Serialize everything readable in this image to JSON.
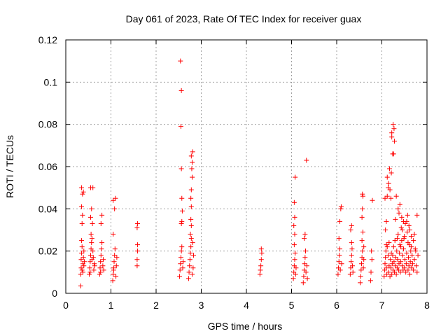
{
  "chart_data": {
    "type": "scatter",
    "title": "Day 061 of 2023, Rate Of TEC Index for receiver guax",
    "xlabel": "GPS time / hours",
    "ylabel": "ROTI / TECUs",
    "xlim": [
      0,
      8
    ],
    "ylim": [
      0,
      0.12
    ],
    "x_ticks": [
      "0",
      "1",
      "2",
      "3",
      "4",
      "5",
      "6",
      "7",
      "8"
    ],
    "y_ticks": [
      "0",
      "0.02",
      "0.04",
      "0.06",
      "0.08",
      "0.1",
      "0.12"
    ],
    "grid": true,
    "marker": "+",
    "colors": {
      "points": "#ff0000",
      "grid": "#a0a0a0",
      "axes": "#000000"
    },
    "series": [
      {
        "points": [
          [
            0.33,
            0.0035
          ],
          [
            0.33,
            0.009
          ],
          [
            0.34,
            0.012
          ],
          [
            0.34,
            0.016
          ],
          [
            0.35,
            0.019
          ],
          [
            0.35,
            0.025
          ],
          [
            0.36,
            0.033
          ],
          [
            0.37,
            0.037
          ],
          [
            0.35,
            0.041
          ],
          [
            0.37,
            0.047
          ],
          [
            0.35,
            0.05
          ],
          [
            0.39,
            0.048
          ],
          [
            0.36,
            0.011
          ],
          [
            0.38,
            0.014
          ],
          [
            0.39,
            0.017
          ],
          [
            0.4,
            0.013
          ],
          [
            0.4,
            0.02
          ],
          [
            0.38,
            0.01
          ],
          [
            0.36,
            0.022
          ],
          [
            0.41,
            0.015
          ],
          [
            0.52,
            0.009
          ],
          [
            0.53,
            0.012
          ],
          [
            0.54,
            0.015
          ],
          [
            0.55,
            0.018
          ],
          [
            0.56,
            0.021
          ],
          [
            0.57,
            0.024
          ],
          [
            0.58,
            0.026
          ],
          [
            0.59,
            0.033
          ],
          [
            0.55,
            0.036
          ],
          [
            0.57,
            0.04
          ],
          [
            0.55,
            0.05
          ],
          [
            0.6,
            0.05
          ],
          [
            0.62,
            0.011
          ],
          [
            0.63,
            0.014
          ],
          [
            0.61,
            0.017
          ],
          [
            0.64,
            0.013
          ],
          [
            0.54,
            0.01
          ],
          [
            0.58,
            0.016
          ],
          [
            0.6,
            0.02
          ],
          [
            0.56,
            0.028
          ],
          [
            0.75,
            0.009
          ],
          [
            0.76,
            0.012
          ],
          [
            0.77,
            0.015
          ],
          [
            0.78,
            0.018
          ],
          [
            0.79,
            0.021
          ],
          [
            0.8,
            0.024
          ],
          [
            0.78,
            0.033
          ],
          [
            0.8,
            0.037
          ],
          [
            0.82,
            0.013
          ],
          [
            0.83,
            0.016
          ],
          [
            0.84,
            0.011
          ],
          [
            0.77,
            0.01
          ],
          [
            1.04,
            0.006
          ],
          [
            1.05,
            0.009
          ],
          [
            1.06,
            0.012
          ],
          [
            1.07,
            0.015
          ],
          [
            1.08,
            0.018
          ],
          [
            1.09,
            0.021
          ],
          [
            1.05,
            0.028
          ],
          [
            1.08,
            0.04
          ],
          [
            1.05,
            0.044
          ],
          [
            1.1,
            0.045
          ],
          [
            1.11,
            0.008
          ],
          [
            1.12,
            0.013
          ],
          [
            1.13,
            0.017
          ],
          [
            1.06,
            0.011
          ],
          [
            1.58,
            0.013
          ],
          [
            1.58,
            0.016
          ],
          [
            1.59,
            0.02
          ],
          [
            1.59,
            0.023
          ],
          [
            1.58,
            0.031
          ],
          [
            1.59,
            0.033
          ],
          [
            2.52,
            0.008
          ],
          [
            2.53,
            0.011
          ],
          [
            2.54,
            0.014
          ],
          [
            2.55,
            0.017
          ],
          [
            2.56,
            0.02
          ],
          [
            2.57,
            0.022
          ],
          [
            2.56,
            0.033
          ],
          [
            2.57,
            0.034
          ],
          [
            2.58,
            0.039
          ],
          [
            2.57,
            0.045
          ],
          [
            2.56,
            0.059
          ],
          [
            2.55,
            0.079
          ],
          [
            2.56,
            0.096
          ],
          [
            2.54,
            0.11
          ],
          [
            2.59,
            0.012
          ],
          [
            2.6,
            0.015
          ],
          [
            2.72,
            0.007
          ],
          [
            2.73,
            0.01
          ],
          [
            2.74,
            0.013
          ],
          [
            2.75,
            0.016
          ],
          [
            2.76,
            0.019
          ],
          [
            2.77,
            0.022
          ],
          [
            2.78,
            0.026
          ],
          [
            2.76,
            0.028
          ],
          [
            2.78,
            0.032
          ],
          [
            2.77,
            0.035
          ],
          [
            2.78,
            0.041
          ],
          [
            2.77,
            0.045
          ],
          [
            2.78,
            0.049
          ],
          [
            2.8,
            0.055
          ],
          [
            2.79,
            0.059
          ],
          [
            2.8,
            0.062
          ],
          [
            2.78,
            0.065
          ],
          [
            2.81,
            0.067
          ],
          [
            2.82,
            0.012
          ],
          [
            2.83,
            0.018
          ],
          [
            2.8,
            0.009
          ],
          [
            2.81,
            0.024
          ],
          [
            4.3,
            0.009
          ],
          [
            4.31,
            0.011
          ],
          [
            4.32,
            0.013
          ],
          [
            4.33,
            0.016
          ],
          [
            4.34,
            0.019
          ],
          [
            4.33,
            0.021
          ],
          [
            5.04,
            0.007
          ],
          [
            5.05,
            0.01
          ],
          [
            5.06,
            0.013
          ],
          [
            5.07,
            0.016
          ],
          [
            5.08,
            0.019
          ],
          [
            5.06,
            0.023
          ],
          [
            5.07,
            0.028
          ],
          [
            5.05,
            0.032
          ],
          [
            5.07,
            0.036
          ],
          [
            5.06,
            0.043
          ],
          [
            5.08,
            0.055
          ],
          [
            5.09,
            0.009
          ],
          [
            5.1,
            0.012
          ],
          [
            5.26,
            0.005
          ],
          [
            5.27,
            0.008
          ],
          [
            5.28,
            0.011
          ],
          [
            5.29,
            0.014
          ],
          [
            5.3,
            0.017
          ],
          [
            5.31,
            0.02
          ],
          [
            5.28,
            0.026
          ],
          [
            5.3,
            0.028
          ],
          [
            5.33,
            0.063
          ],
          [
            5.32,
            0.01
          ],
          [
            5.34,
            0.013
          ],
          [
            5.35,
            0.007
          ],
          [
            6.03,
            0.009
          ],
          [
            6.04,
            0.012
          ],
          [
            6.05,
            0.015
          ],
          [
            6.06,
            0.018
          ],
          [
            6.07,
            0.021
          ],
          [
            6.05,
            0.026
          ],
          [
            6.07,
            0.034
          ],
          [
            6.09,
            0.04
          ],
          [
            6.1,
            0.041
          ],
          [
            6.08,
            0.011
          ],
          [
            6.11,
            0.014
          ],
          [
            6.3,
            0.009
          ],
          [
            6.31,
            0.012
          ],
          [
            6.32,
            0.015
          ],
          [
            6.33,
            0.018
          ],
          [
            6.34,
            0.021
          ],
          [
            6.33,
            0.024
          ],
          [
            6.31,
            0.03
          ],
          [
            6.33,
            0.032
          ],
          [
            6.35,
            0.013
          ],
          [
            6.36,
            0.01
          ],
          [
            6.52,
            0.005
          ],
          [
            6.53,
            0.008
          ],
          [
            6.54,
            0.011
          ],
          [
            6.55,
            0.014
          ],
          [
            6.56,
            0.017
          ],
          [
            6.57,
            0.02
          ],
          [
            6.56,
            0.025
          ],
          [
            6.58,
            0.029
          ],
          [
            6.56,
            0.036
          ],
          [
            6.57,
            0.04
          ],
          [
            6.58,
            0.046
          ],
          [
            6.57,
            0.047
          ],
          [
            6.59,
            0.012
          ],
          [
            6.6,
            0.016
          ],
          [
            6.6,
            0.022
          ],
          [
            6.75,
            0.006
          ],
          [
            6.76,
            0.01
          ],
          [
            6.78,
            0.016
          ],
          [
            6.77,
            0.02
          ],
          [
            6.79,
            0.044
          ],
          [
            7.05,
            0.008
          ],
          [
            7.06,
            0.011
          ],
          [
            7.07,
            0.014
          ],
          [
            7.08,
            0.017
          ],
          [
            7.09,
            0.02
          ],
          [
            7.1,
            0.023
          ],
          [
            7.08,
            0.03
          ],
          [
            7.1,
            0.034
          ],
          [
            7.07,
            0.045
          ],
          [
            7.12,
            0.046
          ],
          [
            7.14,
            0.05
          ],
          [
            7.15,
            0.052
          ],
          [
            7.12,
            0.055
          ],
          [
            7.18,
            0.049
          ],
          [
            7.2,
            0.045
          ],
          [
            7.17,
            0.059
          ],
          [
            7.21,
            0.057
          ],
          [
            7.24,
            0.066
          ],
          [
            7.22,
            0.076
          ],
          [
            7.25,
            0.08
          ],
          [
            7.22,
            0.074
          ],
          [
            7.27,
            0.078
          ],
          [
            7.28,
            0.072
          ],
          [
            7.26,
            0.066
          ],
          [
            7.15,
            0.01
          ],
          [
            7.16,
            0.013
          ],
          [
            7.18,
            0.008
          ],
          [
            7.19,
            0.016
          ],
          [
            7.2,
            0.012
          ],
          [
            7.21,
            0.019
          ],
          [
            7.22,
            0.009
          ],
          [
            7.23,
            0.014
          ],
          [
            7.24,
            0.018
          ],
          [
            7.25,
            0.011
          ],
          [
            7.26,
            0.022
          ],
          [
            7.27,
            0.015
          ],
          [
            7.28,
            0.01
          ],
          [
            7.29,
            0.025
          ],
          [
            7.3,
            0.013
          ],
          [
            7.31,
            0.017
          ],
          [
            7.32,
            0.009
          ],
          [
            7.33,
            0.02
          ],
          [
            7.34,
            0.012
          ],
          [
            7.35,
            0.016
          ],
          [
            7.36,
            0.028
          ],
          [
            7.37,
            0.011
          ],
          [
            7.38,
            0.014
          ],
          [
            7.39,
            0.019
          ],
          [
            7.4,
            0.023
          ],
          [
            7.41,
            0.01
          ],
          [
            7.42,
            0.015
          ],
          [
            7.43,
            0.031
          ],
          [
            7.44,
            0.036
          ],
          [
            7.45,
            0.013
          ],
          [
            7.46,
            0.018
          ],
          [
            7.47,
            0.011
          ],
          [
            7.48,
            0.021
          ],
          [
            7.49,
            0.026
          ],
          [
            7.5,
            0.012
          ],
          [
            7.51,
            0.016
          ],
          [
            7.52,
            0.033
          ],
          [
            7.53,
            0.01
          ],
          [
            7.54,
            0.014
          ],
          [
            7.55,
            0.019
          ],
          [
            7.56,
            0.029
          ],
          [
            7.57,
            0.037
          ],
          [
            7.58,
            0.011
          ],
          [
            7.59,
            0.017
          ],
          [
            7.6,
            0.013
          ],
          [
            7.61,
            0.023
          ],
          [
            7.62,
            0.009
          ],
          [
            7.63,
            0.015
          ],
          [
            7.64,
            0.02
          ],
          [
            7.65,
            0.027
          ],
          [
            7.66,
            0.012
          ],
          [
            7.67,
            0.018
          ],
          [
            7.68,
            0.014
          ],
          [
            7.7,
            0.011
          ],
          [
            7.72,
            0.016
          ],
          [
            7.74,
            0.021
          ],
          [
            7.76,
            0.013
          ],
          [
            7.78,
            0.01
          ],
          [
            7.8,
            0.018
          ],
          [
            7.36,
            0.04
          ],
          [
            7.38,
            0.038
          ],
          [
            7.4,
            0.042
          ],
          [
            7.32,
            0.046
          ],
          [
            7.3,
            0.035
          ],
          [
            7.45,
            0.03
          ],
          [
            7.5,
            0.027
          ],
          [
            7.55,
            0.034
          ],
          [
            7.6,
            0.032
          ],
          [
            7.62,
            0.03
          ],
          [
            7.58,
            0.024
          ],
          [
            7.65,
            0.022
          ],
          [
            7.7,
            0.025
          ],
          [
            7.75,
            0.02
          ],
          [
            7.78,
            0.037
          ],
          [
            7.72,
            0.028
          ],
          [
            7.48,
            0.034
          ],
          [
            7.44,
            0.025
          ],
          [
            7.42,
            0.022
          ],
          [
            7.34,
            0.026
          ],
          [
            7.12,
            0.022
          ],
          [
            7.14,
            0.018
          ],
          [
            7.16,
            0.024
          ],
          [
            7.1,
            0.012
          ],
          [
            7.11,
            0.009
          ]
        ]
      }
    ]
  }
}
